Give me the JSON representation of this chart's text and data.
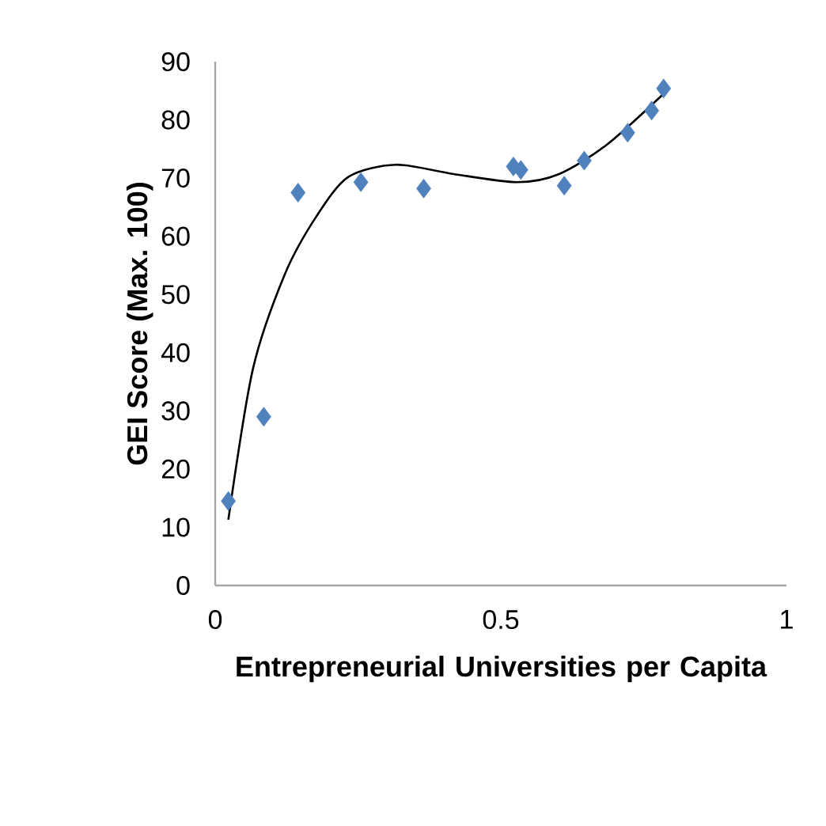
{
  "chart_data": {
    "type": "scatter",
    "xlabel": "Entrepreneurial Universities per Capita",
    "ylabel": "GEI Score (Max. 100)",
    "xlim": [
      0,
      1
    ],
    "xticks": [
      0,
      0.5,
      1
    ],
    "ylim": [
      0,
      90
    ],
    "yticks": [
      0,
      10,
      20,
      30,
      40,
      50,
      60,
      70,
      80,
      90
    ],
    "marker": "diamond",
    "series": [
      {
        "color": "#4f81bd",
        "x": [
          0.023,
          0.085,
          0.145,
          0.255,
          0.365,
          0.522,
          0.535,
          0.611,
          0.646,
          0.722,
          0.764,
          0.785
        ],
        "values": [
          14.5,
          29.0,
          67.5,
          69.3,
          68.2,
          72.0,
          71.4,
          68.7,
          73.0,
          77.8,
          81.6,
          85.4
        ]
      },
      {
        "type": "line",
        "color": "#000000",
        "marker": "none",
        "x": [
          0.023,
          0.066,
          0.122,
          0.177,
          0.233,
          0.316,
          0.417,
          0.528,
          0.602,
          0.685,
          0.785
        ],
        "values": [
          11.3,
          37.2,
          53.5,
          63.4,
          70.2,
          72.3,
          70.7,
          69.3,
          70.7,
          75.7,
          84.5
        ]
      }
    ]
  }
}
